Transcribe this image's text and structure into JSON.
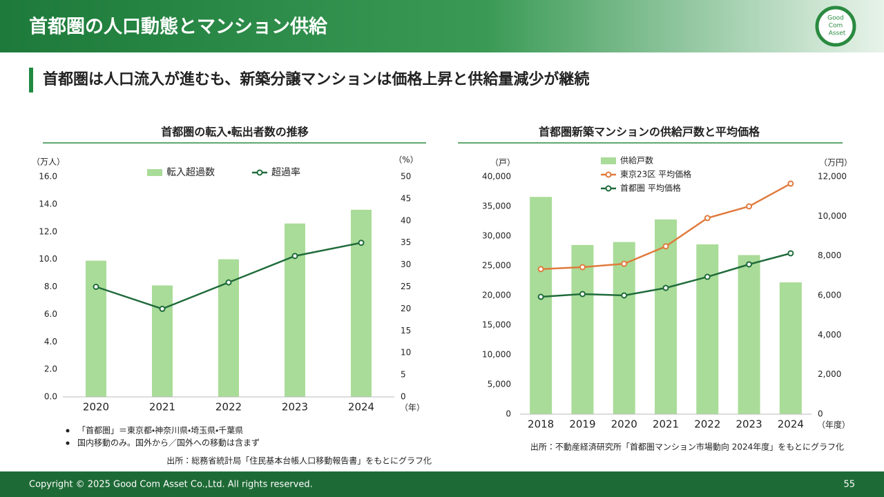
{
  "slide": {
    "title": "首都圏の人口動態とマンション供給",
    "subtitle": "首都圏は人口流入が進むも、新築分譲マンションは価格上昇と供給量減少が継続",
    "logo": [
      "Good",
      "Com",
      "Asset"
    ],
    "notes": [
      "「首都圏」＝東京都・神奈川県・埼玉県・千葉県",
      "国内移動のみ。国外から／国外への移動は含まず"
    ],
    "source_left": "出所：総務省統計局「住民基本台帳人口移動報告書」をもとにグラフ化",
    "source_right": "出所：不動産経済研究所「首都圏マンション市場動向 2024年度」をもとにグラフ化",
    "copyright": "Copyright © 2025 Good Com Asset Co.,Ltd. All rights reserved.",
    "page": "55"
  },
  "chart_data": [
    {
      "type": "bar_line",
      "title": "首都圏の転入・転出者数の推移",
      "y_label": "（万人）",
      "y2_label": "（%）",
      "x_label": "（年）",
      "legend": "top",
      "grid": false,
      "categories": [
        "2020",
        "2021",
        "2022",
        "2023",
        "2024"
      ],
      "series": [
        {
          "name": "転入超過数",
          "type": "bar",
          "color": "#a9dc98",
          "values": [
            9.9,
            8.1,
            10.0,
            12.6,
            13.6
          ]
        },
        {
          "name": "超過率",
          "type": "line",
          "axis": "y2",
          "color": "#1f6b3a",
          "values": [
            25,
            20,
            26,
            32,
            35
          ]
        }
      ],
      "ylim": [
        0,
        16
      ],
      "yticks": [
        {
          "value": 0,
          "label": "0.0"
        },
        {
          "value": 2,
          "label": "2.0"
        },
        {
          "value": 4,
          "label": "4.0"
        },
        {
          "value": 6,
          "label": "6.0"
        },
        {
          "value": 8,
          "label": "8.0"
        },
        {
          "value": 10,
          "label": "10.0"
        },
        {
          "value": 12,
          "label": "12.0"
        },
        {
          "value": 14,
          "label": "14.0"
        },
        {
          "value": 16,
          "label": "16.0"
        }
      ],
      "y2lim": [
        0,
        50
      ],
      "y2ticks": [
        0,
        5,
        10,
        15,
        20,
        25,
        30,
        35,
        40,
        45,
        50
      ]
    },
    {
      "type": "bar_line",
      "title": "首都圏新築マンションの供給戸数と平均価格",
      "y_label": "（戸）",
      "y2_label": "（万円）",
      "x_label": "（年度）",
      "legend": "top-left",
      "grid": false,
      "categories": [
        "2018",
        "2019",
        "2020",
        "2021",
        "2022",
        "2023",
        "2024"
      ],
      "series": [
        {
          "name": "供給戸数",
          "type": "bar",
          "color": "#a9dc98",
          "values": [
            36600,
            28500,
            29000,
            32800,
            28600,
            26800,
            22200
          ]
        },
        {
          "name": "東京23区 平均価格",
          "type": "line",
          "axis": "y2",
          "color": "#e07a3c",
          "values": [
            7330,
            7430,
            7600,
            8480,
            9910,
            10500,
            11650
          ]
        },
        {
          "name": "首都圏 平均価格",
          "type": "line",
          "axis": "y2",
          "color": "#1f6b3a",
          "values": [
            5930,
            6070,
            6000,
            6380,
            6940,
            7570,
            8130
          ]
        }
      ],
      "ylim": [
        0,
        40000
      ],
      "yticks": [
        0,
        {
          "value": 5000,
          "label": "5,000"
        },
        {
          "value": 10000,
          "label": "10,000"
        },
        {
          "value": 15000,
          "label": "15,000"
        },
        {
          "value": 20000,
          "label": "20,000"
        },
        {
          "value": 25000,
          "label": "25,000"
        },
        {
          "value": 30000,
          "label": "30,000"
        },
        {
          "value": 35000,
          "label": "35,000"
        },
        {
          "value": 40000,
          "label": "40,000"
        }
      ],
      "y2lim": [
        0,
        12000
      ],
      "y2ticks": [
        0,
        {
          "value": 2000,
          "label": "2,000"
        },
        {
          "value": 4000,
          "label": "4,000"
        },
        {
          "value": 6000,
          "label": "6,000"
        },
        {
          "value": 8000,
          "label": "8,000"
        },
        {
          "value": 10000,
          "label": "10,000"
        },
        {
          "value": 12000,
          "label": "12,000"
        }
      ]
    }
  ]
}
